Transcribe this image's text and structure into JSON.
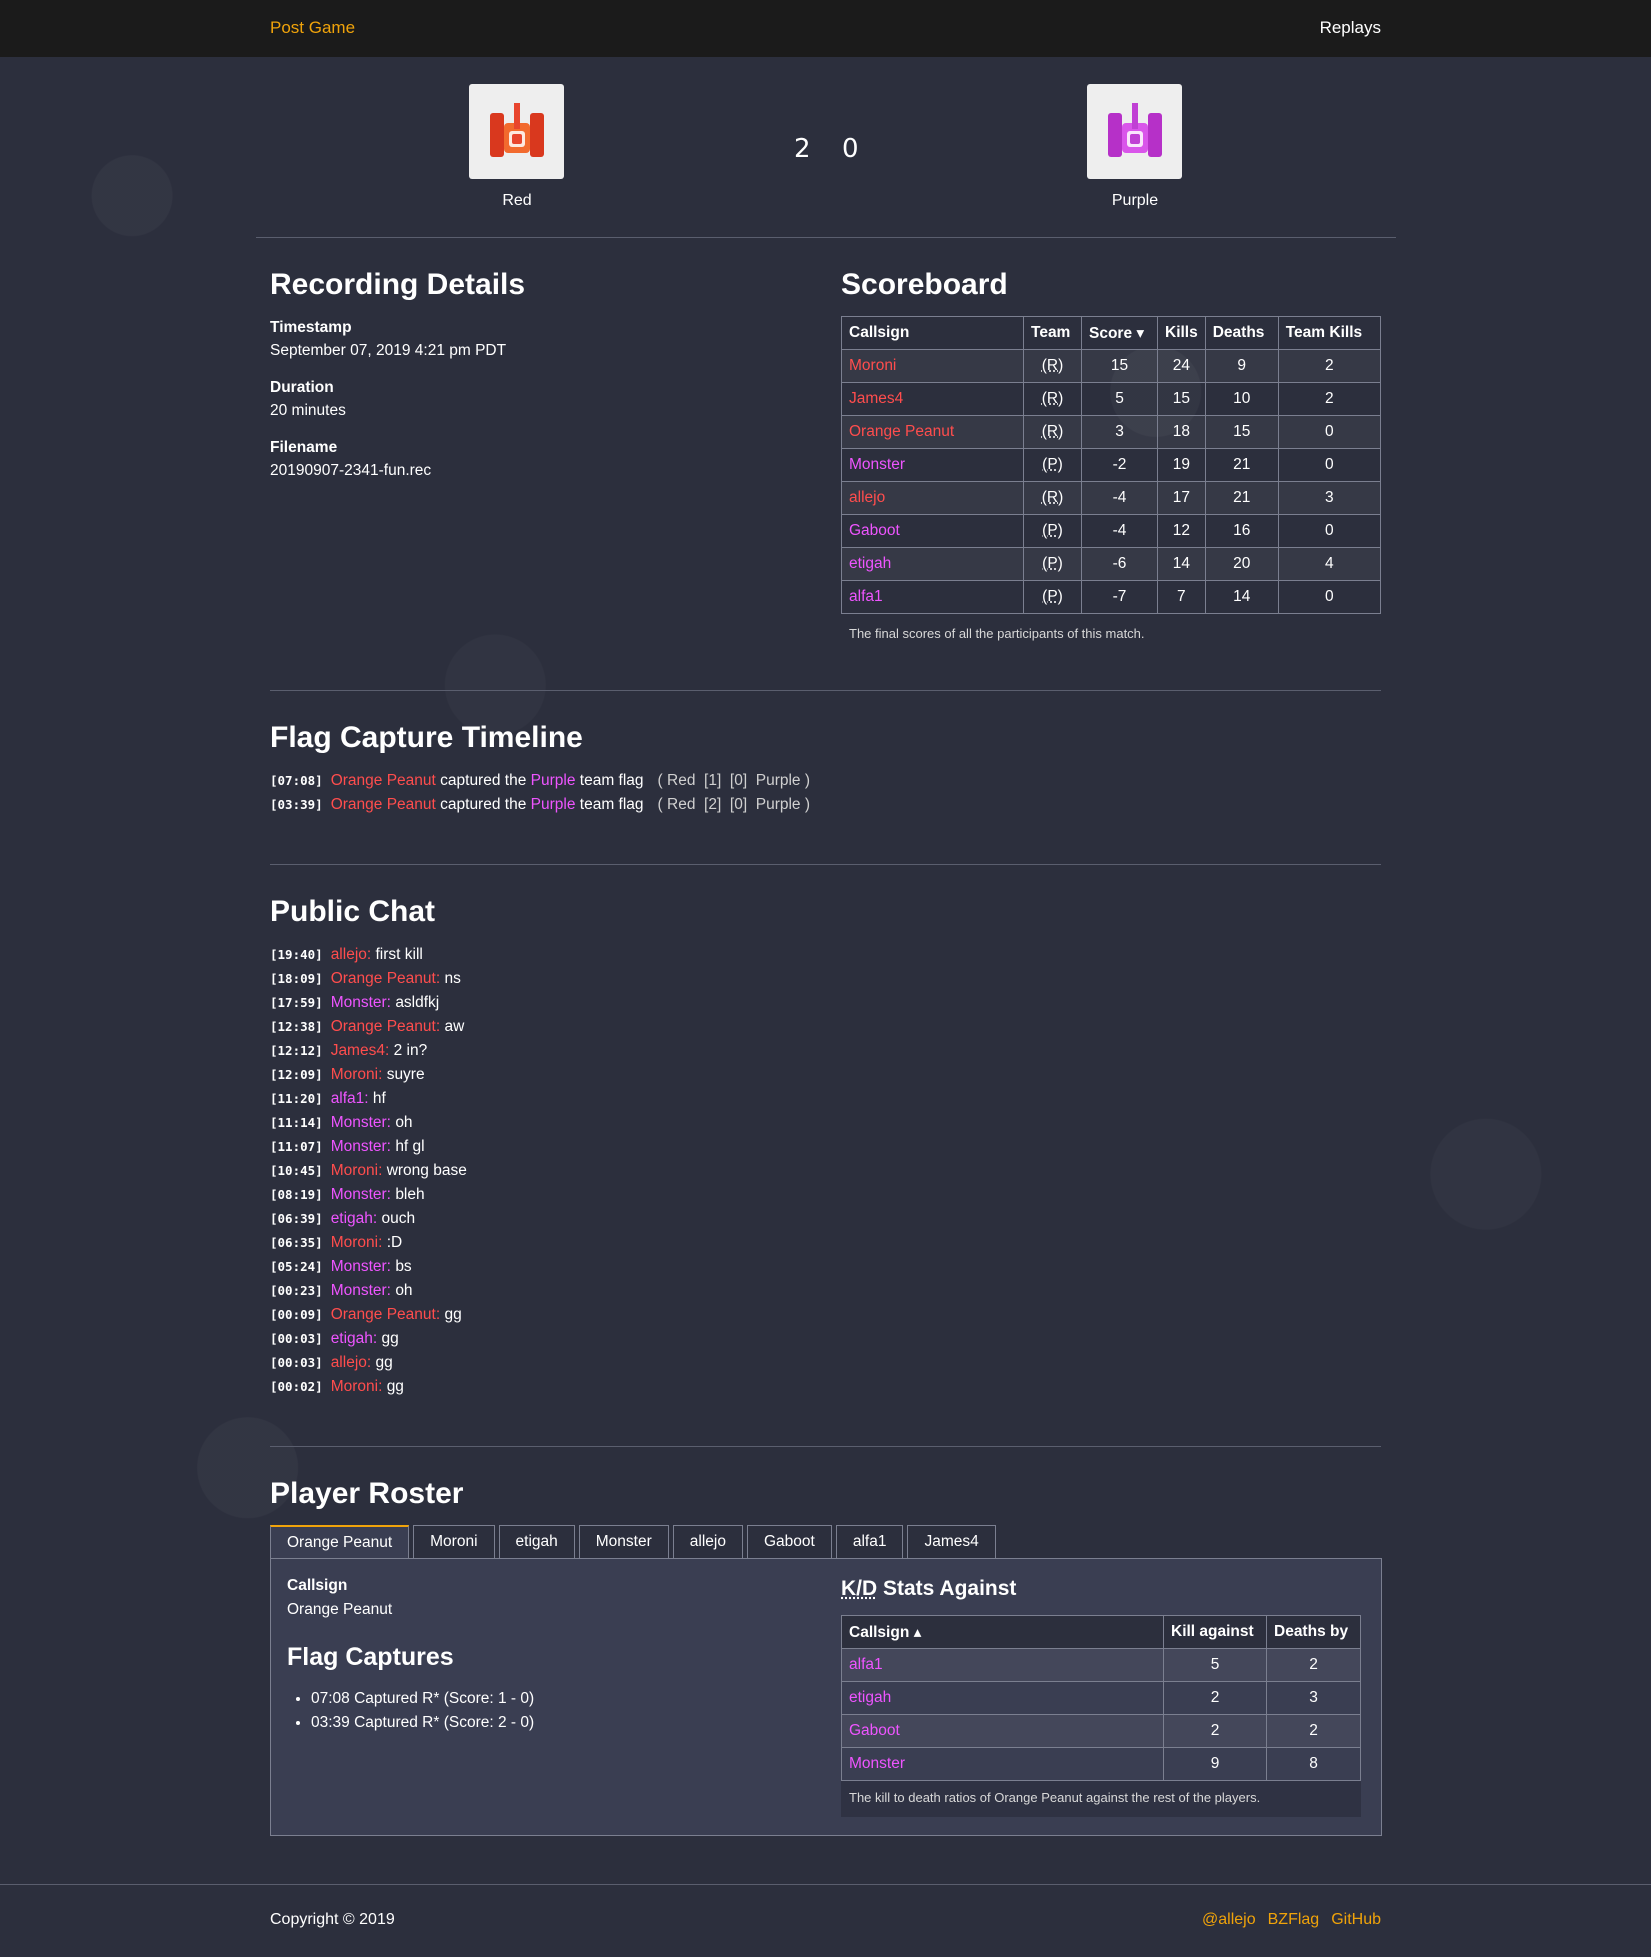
{
  "nav": {
    "brand": "Post Game",
    "replays": "Replays"
  },
  "match": {
    "team_left": {
      "name": "Red",
      "score": "2",
      "color": "#e8452e"
    },
    "team_right": {
      "name": "Purple",
      "score": "0",
      "color": "#cc44dd"
    }
  },
  "details": {
    "title": "Recording Details",
    "timestamp_label": "Timestamp",
    "timestamp": "September 07, 2019 4:21 pm PDT",
    "duration_label": "Duration",
    "duration": "20 minutes",
    "filename_label": "Filename",
    "filename": "20190907-2341-fun.rec"
  },
  "scoreboard": {
    "title": "Scoreboard",
    "headers": [
      "Callsign",
      "Team",
      "Score ▾",
      "Kills",
      "Deaths",
      "Team Kills"
    ],
    "rows": [
      {
        "callsign": "Moroni",
        "team": "(R)",
        "score": "15",
        "kills": "24",
        "deaths": "9",
        "team_kills": "2"
      },
      {
        "callsign": "James4",
        "team": "(R)",
        "score": "5",
        "kills": "15",
        "deaths": "10",
        "team_kills": "2"
      },
      {
        "callsign": "Orange Peanut",
        "team": "(R)",
        "score": "3",
        "kills": "18",
        "deaths": "15",
        "team_kills": "0"
      },
      {
        "callsign": "Monster",
        "team": "(P)",
        "score": "-2",
        "kills": "19",
        "deaths": "21",
        "team_kills": "0"
      },
      {
        "callsign": "allejo",
        "team": "(R)",
        "score": "-4",
        "kills": "17",
        "deaths": "21",
        "team_kills": "3"
      },
      {
        "callsign": "Gaboot",
        "team": "(P)",
        "score": "-4",
        "kills": "12",
        "deaths": "16",
        "team_kills": "0"
      },
      {
        "callsign": "etigah",
        "team": "(P)",
        "score": "-6",
        "kills": "14",
        "deaths": "20",
        "team_kills": "4"
      },
      {
        "callsign": "alfa1",
        "team": "(P)",
        "score": "-7",
        "kills": "7",
        "deaths": "14",
        "team_kills": "0"
      }
    ],
    "caption": "The final scores of all the participants of this match."
  },
  "timeline": {
    "title": "Flag Capture Timeline",
    "events": [
      {
        "time": "[07:08]",
        "player": "Orange Peanut",
        "mid": "captured the",
        "flag_team": "Purple",
        "end": "team flag",
        "score_text": "( Red  [1]  [0]  Purple )"
      },
      {
        "time": "[03:39]",
        "player": "Orange Peanut",
        "mid": "captured the",
        "flag_team": "Purple",
        "end": "team flag",
        "score_text": "( Red  [2]  [0]  Purple )"
      }
    ]
  },
  "chat": {
    "title": "Public Chat",
    "messages": [
      {
        "time": "[19:40]",
        "player": "allejo:",
        "team": "red",
        "text": "first kill"
      },
      {
        "time": "[18:09]",
        "player": "Orange Peanut:",
        "team": "red",
        "text": "ns"
      },
      {
        "time": "[17:59]",
        "player": "Monster:",
        "team": "purple",
        "text": "asldfkj"
      },
      {
        "time": "[12:38]",
        "player": "Orange Peanut:",
        "team": "red",
        "text": "aw"
      },
      {
        "time": "[12:12]",
        "player": "James4:",
        "team": "red",
        "text": "2 in?"
      },
      {
        "time": "[12:09]",
        "player": "Moroni:",
        "team": "red",
        "text": "suyre"
      },
      {
        "time": "[11:20]",
        "player": "alfa1:",
        "team": "purple",
        "text": "hf"
      },
      {
        "time": "[11:14]",
        "player": "Monster:",
        "team": "purple",
        "text": "oh"
      },
      {
        "time": "[11:07]",
        "player": "Monster:",
        "team": "purple",
        "text": "hf gl"
      },
      {
        "time": "[10:45]",
        "player": "Moroni:",
        "team": "red",
        "text": "wrong base"
      },
      {
        "time": "[08:19]",
        "player": "Monster:",
        "team": "purple",
        "text": "bleh"
      },
      {
        "time": "[06:39]",
        "player": "etigah:",
        "team": "purple",
        "text": "ouch"
      },
      {
        "time": "[06:35]",
        "player": "Moroni:",
        "team": "red",
        "text": ":D"
      },
      {
        "time": "[05:24]",
        "player": "Monster:",
        "team": "purple",
        "text": "bs"
      },
      {
        "time": "[00:23]",
        "player": "Monster:",
        "team": "purple",
        "text": "oh"
      },
      {
        "time": "[00:09]",
        "player": "Orange Peanut:",
        "team": "red",
        "text": "gg"
      },
      {
        "time": "[00:03]",
        "player": "etigah:",
        "team": "purple",
        "text": "gg"
      },
      {
        "time": "[00:03]",
        "player": "allejo:",
        "team": "red",
        "text": "gg"
      },
      {
        "time": "[00:02]",
        "player": "Moroni:",
        "team": "red",
        "text": "gg"
      }
    ]
  },
  "roster": {
    "title": "Player Roster",
    "tabs": [
      "Orange Peanut",
      "Moroni",
      "etigah",
      "Monster",
      "allejo",
      "Gaboot",
      "alfa1",
      "James4"
    ],
    "active_tab": "Orange Peanut",
    "callsign_label": "Callsign",
    "callsign": "Orange Peanut",
    "flag_captures_title": "Flag Captures",
    "flag_captures": [
      "07:08 Captured R* (Score: 1 - 0)",
      "03:39 Captured R* (Score: 2 - 0)"
    ],
    "kd_title_abbr": "K/D",
    "kd_title_rest": " Stats Against",
    "kd_headers": [
      "Callsign ▴",
      "Kill against",
      "Deaths by"
    ],
    "kd_rows": [
      {
        "callsign": "alfa1",
        "kills": "5",
        "deaths": "2"
      },
      {
        "callsign": "etigah",
        "kills": "2",
        "deaths": "3"
      },
      {
        "callsign": "Gaboot",
        "kills": "2",
        "deaths": "2"
      },
      {
        "callsign": "Monster",
        "kills": "9",
        "deaths": "8"
      }
    ],
    "kd_caption": "The kill to death ratios of Orange Peanut against the rest of the players."
  },
  "footer": {
    "copyright": "Copyright © 2019",
    "links": [
      "@allejo",
      "BZFlag",
      "GitHub"
    ]
  }
}
